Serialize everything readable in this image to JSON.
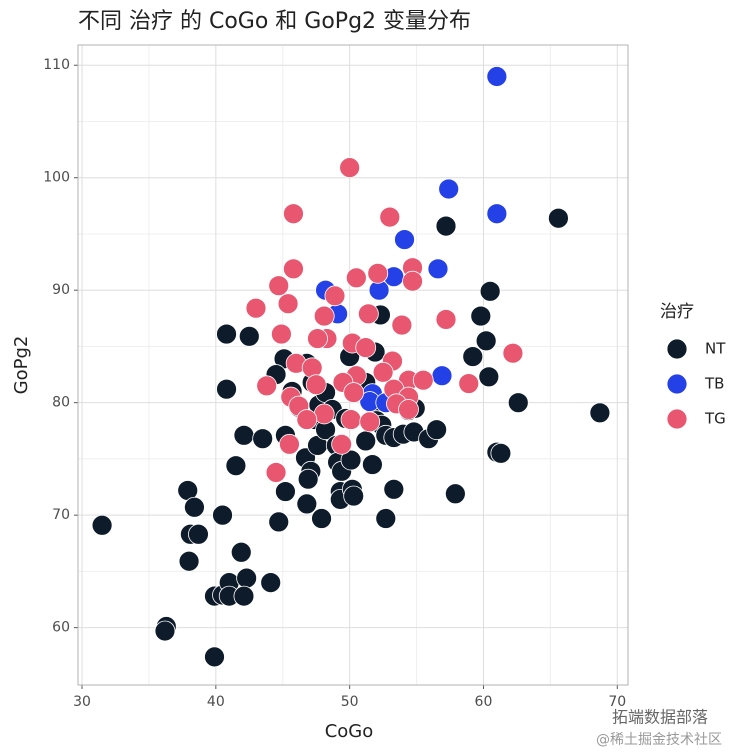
{
  "chart_data": {
    "type": "scatter",
    "title": "不同 治疗 的 CoGo 和 GoPg2 变量分布",
    "x_label": "CoGo",
    "y_label": "GoPg2",
    "legend_title": "治疗",
    "legend_position": "right",
    "grid": true,
    "xlim": [
      29.7,
      70.8
    ],
    "ylim": [
      54.9,
      111.8
    ],
    "xticks": [
      30,
      40,
      50,
      60,
      70
    ],
    "yticks": [
      60,
      70,
      80,
      90,
      100,
      110
    ],
    "series": [
      {
        "name": "NT",
        "color": "#0e1b2b",
        "x": [
          31.5,
          36.3,
          36.2,
          39.9,
          37.9,
          38.4,
          38.1,
          38.7,
          38.0,
          39.9,
          40.5,
          41.0,
          41.0,
          42.3,
          42.1,
          41.9,
          40.5,
          40.8,
          42.5,
          40.8,
          42.1,
          41.5,
          43.5,
          44.1,
          44.7,
          45.2,
          45.2,
          45.1,
          44.5,
          45.7,
          46.2,
          46.7,
          47.1,
          46.8,
          46.9,
          47.9,
          47.6,
          47.4,
          47.7,
          48.2,
          48.7,
          48.2,
          49.0,
          49.1,
          49.4,
          49.3,
          49.3,
          49.7,
          50.1,
          50.2,
          50.3,
          50.5,
          51.2,
          51.2,
          51.7,
          51.7,
          52.0,
          52.3,
          52.7,
          52.4,
          52.7,
          53.3,
          53.3,
          54.0,
          54.4,
          54.9,
          54.8,
          55.9,
          56.5,
          57.2,
          57.9,
          59.2,
          59.8,
          60.2,
          60.5,
          60.4,
          61.0,
          61.3,
          62.6,
          65.6,
          68.7,
          46.8,
          47.2,
          51.9,
          50.0
        ],
        "y": [
          69.1,
          60.1,
          59.7,
          57.4,
          72.2,
          70.7,
          68.3,
          68.3,
          65.9,
          62.8,
          62.9,
          64.0,
          62.8,
          64.4,
          62.8,
          66.7,
          70.0,
          86.1,
          85.9,
          81.2,
          77.1,
          74.4,
          76.8,
          64.0,
          69.4,
          72.1,
          77.1,
          83.9,
          82.5,
          81.0,
          79.6,
          75.1,
          73.9,
          71.0,
          73.2,
          69.7,
          76.2,
          78.5,
          79.8,
          80.9,
          79.4,
          77.6,
          76.2,
          74.7,
          73.9,
          72.1,
          71.4,
          78.6,
          74.9,
          72.3,
          71.7,
          82.0,
          81.8,
          76.6,
          74.5,
          79.9,
          78.4,
          87.8,
          69.7,
          78.0,
          77.1,
          72.3,
          76.9,
          77.2,
          79.3,
          79.5,
          77.4,
          76.8,
          77.6,
          95.7,
          71.9,
          84.1,
          87.7,
          85.5,
          89.9,
          82.3,
          75.6,
          75.5,
          80.0,
          96.4,
          79.1,
          83.5,
          81.8,
          84.5,
          84.1
        ]
      },
      {
        "name": "TB",
        "color": "#2441e8",
        "x": [
          61.0,
          57.4,
          61.0,
          54.1,
          56.6,
          53.3,
          52.2,
          48.2,
          49.1,
          56.9,
          51.7,
          51.5,
          52.7
        ],
        "y": [
          109.0,
          99.0,
          96.8,
          94.5,
          91.9,
          91.2,
          90.0,
          90.0,
          87.9,
          82.4,
          80.8,
          80.1,
          80.0
        ]
      },
      {
        "name": "TG",
        "color": "#e8566f",
        "x": [
          50.0,
          45.8,
          53.0,
          45.8,
          50.5,
          52.1,
          54.7,
          54.7,
          44.7,
          45.4,
          43.0,
          48.9,
          48.1,
          48.3,
          47.6,
          51.4,
          53.9,
          44.9,
          50.2,
          51.2,
          57.2,
          62.2,
          46.0,
          47.2,
          53.2,
          52.5,
          50.5,
          49.5,
          47.5,
          43.8,
          54.4,
          55.5,
          58.9,
          53.3,
          54.4,
          50.3,
          45.6,
          46.2,
          53.5,
          54.4,
          48.1,
          50.1,
          51.5,
          46.8,
          45.5,
          49.4,
          44.5
        ],
        "y": [
          100.9,
          96.8,
          96.5,
          91.9,
          91.1,
          91.5,
          92.0,
          90.8,
          90.4,
          88.8,
          88.4,
          89.5,
          87.7,
          85.7,
          85.7,
          87.9,
          86.9,
          86.1,
          85.3,
          84.9,
          87.4,
          84.4,
          83.5,
          83.1,
          83.7,
          82.7,
          82.4,
          81.8,
          81.6,
          81.5,
          82.0,
          82.0,
          81.7,
          81.2,
          80.5,
          80.9,
          80.5,
          79.7,
          79.9,
          79.4,
          79.0,
          78.5,
          78.3,
          78.5,
          76.3,
          76.3,
          73.8
        ]
      }
    ]
  },
  "watermark": {
    "line1": "拓端数据部落",
    "line2": "@稀土掘金技术社区"
  }
}
